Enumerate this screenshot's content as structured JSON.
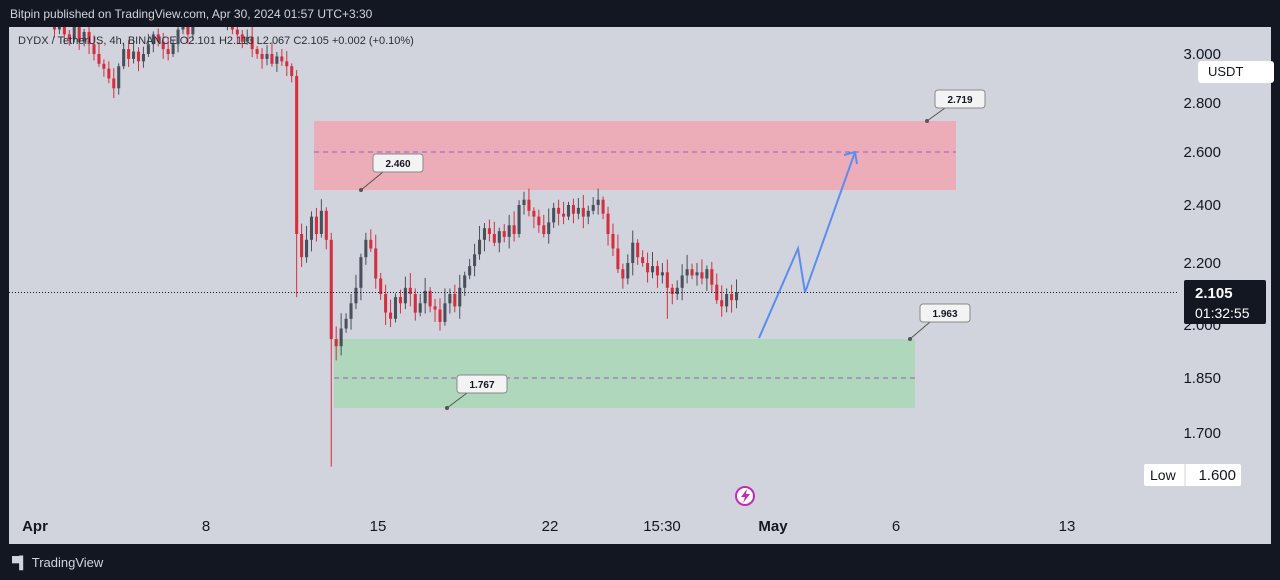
{
  "header": {
    "publisher": "Bitpin published on TradingView.com, Apr 30, 2024 01:57 UTC+3:30"
  },
  "legend": {
    "ohlc_text": "DYDX / TetherUS, 4h, BINANCE  O2.101  H2.113  L2.067  C2.105  +0.002 (+0.10%)"
  },
  "currency": "USDT",
  "footer": {
    "brand": "TradingView"
  },
  "colors": {
    "up": "#4a4f5c",
    "down": "#d32f3f",
    "resistance_zone": "#f4a0ad",
    "support_zone": "#a3d8b0",
    "projection": "#5b8def",
    "background": "#d1d4dc"
  },
  "chart_data": {
    "type": "candlestick",
    "symbol": "DYDX / TetherUS",
    "interval": "4h",
    "exchange": "BINANCE",
    "ohlc": {
      "open": 2.101,
      "high": 2.113,
      "low": 2.067,
      "close": 2.105,
      "change": "+0.002 (+0.10%)"
    },
    "last_price": "2.105",
    "countdown": "01:32:55",
    "low_label": "Low",
    "low_value": "1.600",
    "y_ticks": [
      "2.800",
      "2.600",
      "2.400",
      "2.200",
      "2.000",
      "1.850",
      "1.700",
      "1.600"
    ],
    "x_ticks": [
      "Apr",
      "8",
      "15",
      "22",
      "15:30",
      "May",
      "6",
      "13"
    ],
    "zones": [
      {
        "kind": "resistance",
        "top": 2.719,
        "mid": 2.6,
        "bottom": 2.46,
        "top_label": "2.719",
        "bottom_label": "2.460"
      },
      {
        "kind": "support",
        "top": 1.963,
        "mid": 1.85,
        "bottom": 1.767,
        "top_label": "1.963",
        "bottom_label": "1.767"
      }
    ],
    "close_series": [
      3.13,
      3.1,
      3.15,
      3.08,
      3.06,
      3.12,
      3.05,
      3.09,
      3.04,
      3.0,
      2.96,
      2.94,
      2.9,
      2.86,
      2.95,
      3.02,
      2.98,
      3.01,
      2.97,
      3.0,
      3.04,
      3.08,
      3.05,
      3.02,
      3.0,
      3.04,
      3.1,
      3.12,
      3.08,
      3.14,
      3.18,
      3.16,
      3.2,
      3.22,
      3.18,
      3.13,
      3.15,
      3.1,
      3.08,
      3.05,
      3.07,
      3.02,
      3.0,
      2.98,
      3.0,
      2.96,
      2.99,
      2.97,
      2.95,
      2.91,
      2.3,
      2.22,
      2.28,
      2.36,
      2.3,
      2.38,
      2.28,
      1.96,
      1.94,
      1.99,
      2.02,
      2.07,
      2.12,
      2.22,
      2.28,
      2.25,
      2.15,
      2.1,
      2.04,
      2.02,
      2.09,
      2.07,
      2.12,
      2.1,
      2.04,
      2.07,
      2.11,
      2.06,
      2.05,
      2.01,
      2.07,
      2.1,
      2.06,
      2.12,
      2.16,
      2.19,
      2.23,
      2.28,
      2.32,
      2.3,
      2.27,
      2.31,
      2.29,
      2.33,
      2.3,
      2.4,
      2.42,
      2.38,
      2.36,
      2.33,
      2.3,
      2.34,
      2.39,
      2.37,
      2.36,
      2.4,
      2.37,
      2.39,
      2.36,
      2.38,
      2.4,
      2.42,
      2.37,
      2.3,
      2.25,
      2.18,
      2.15,
      2.2,
      2.27,
      2.22,
      2.2,
      2.17,
      2.19,
      2.16,
      2.17,
      2.12,
      2.1,
      2.12,
      2.16,
      2.18,
      2.16,
      2.17,
      2.15,
      2.18,
      2.13,
      2.08,
      2.06,
      2.1,
      2.08,
      2.105
    ],
    "projection": [
      1.963,
      2.25,
      2.105,
      2.6
    ]
  }
}
